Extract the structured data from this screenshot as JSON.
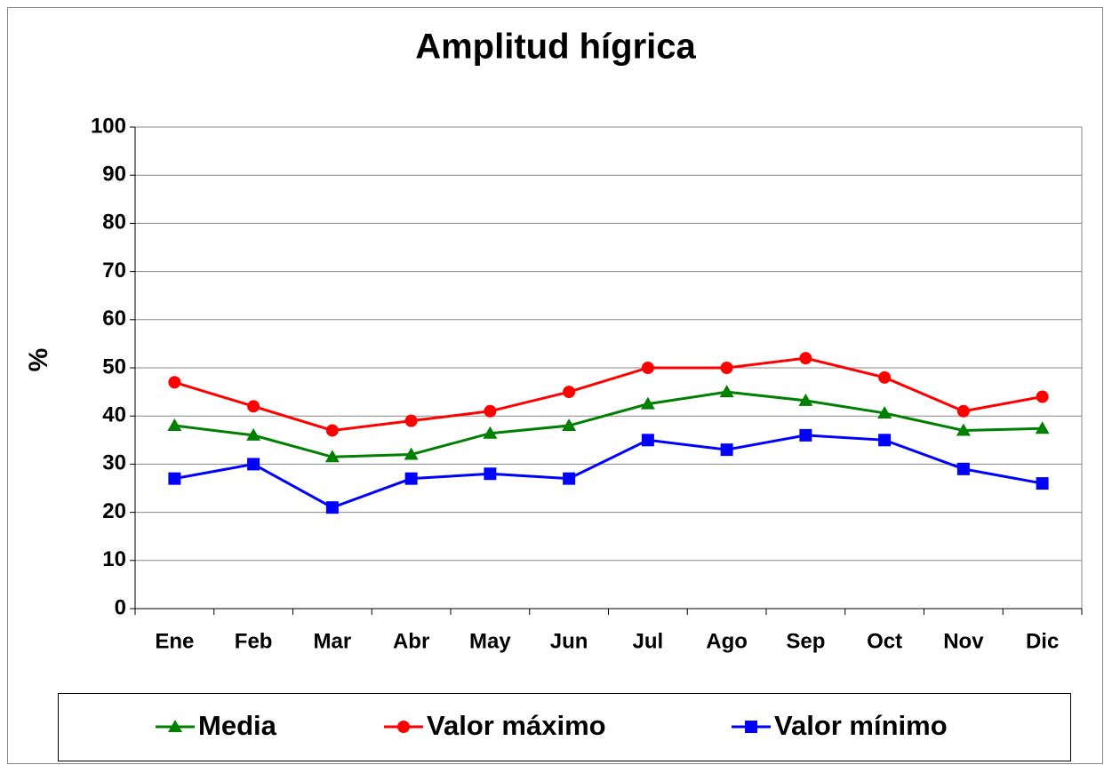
{
  "chart_data": {
    "type": "line",
    "title": "Amplitud hígrica",
    "y_label": "%",
    "categories": [
      "Ene",
      "Feb",
      "Mar",
      "Abr",
      "May",
      "Jun",
      "Jul",
      "Ago",
      "Sep",
      "Oct",
      "Nov",
      "Dic"
    ],
    "series": [
      {
        "name": "Media",
        "color": "#008000",
        "marker": "triangle",
        "values": [
          38,
          36,
          31.5,
          32,
          36.4,
          38,
          42.5,
          45,
          43.2,
          40.6,
          37,
          37.4
        ]
      },
      {
        "name": "Valor máximo",
        "color": "#ff0000",
        "marker": "circle",
        "values": [
          47,
          42,
          37,
          39,
          41,
          45,
          50,
          50,
          52,
          48,
          41,
          44
        ]
      },
      {
        "name": "Valor mínimo",
        "color": "#0000ff",
        "marker": "square",
        "values": [
          27,
          30,
          21,
          27,
          28,
          27,
          35,
          33,
          36,
          35,
          29,
          26
        ]
      }
    ],
    "ylim": [
      0,
      100
    ],
    "yticks": [
      0,
      10,
      20,
      30,
      40,
      50,
      60,
      70,
      80,
      90,
      100
    ],
    "grid": true,
    "legend": "bottom"
  }
}
